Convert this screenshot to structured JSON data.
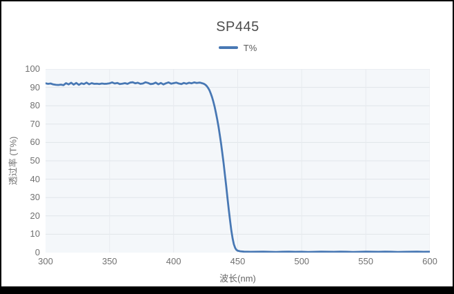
{
  "chart": {
    "title": "SP445",
    "legend": {
      "label": "T%"
    },
    "x_axis_title": "波长(nm)",
    "y_axis_title": "透过率 (T%)"
  },
  "colors": {
    "series": "#4878b4",
    "plot_bg": "#f4f7fa",
    "grid_horizontal": "#e0e5e9",
    "grid_vertical": "#e7ebef",
    "tick_text": "#707070",
    "frame_border": "#000000"
  },
  "chart_data": {
    "type": "line",
    "title": "SP445",
    "xlabel": "波长(nm)",
    "ylabel": "透过率 (T%)",
    "xlim": [
      300,
      600
    ],
    "ylim": [
      0,
      100
    ],
    "x_ticks": [
      300,
      350,
      400,
      450,
      500,
      550,
      600
    ],
    "y_ticks": [
      0,
      10,
      20,
      30,
      40,
      50,
      60,
      70,
      80,
      90,
      100
    ],
    "grid": true,
    "legend_position": "top",
    "series": [
      {
        "name": "T%",
        "color": "#4878b4",
        "points": [
          [
            300,
            92.2
          ],
          [
            302,
            91.9
          ],
          [
            304,
            92.1
          ],
          [
            306,
            91.6
          ],
          [
            308,
            91.4
          ],
          [
            310,
            91.3
          ],
          [
            312,
            91.5
          ],
          [
            314,
            91.2
          ],
          [
            316,
            92.3
          ],
          [
            318,
            91.6
          ],
          [
            320,
            92.5
          ],
          [
            322,
            91.5
          ],
          [
            324,
            92.4
          ],
          [
            326,
            91.4
          ],
          [
            328,
            92.2
          ],
          [
            330,
            91.8
          ],
          [
            332,
            92.6
          ],
          [
            334,
            91.7
          ],
          [
            336,
            92.3
          ],
          [
            338,
            91.9
          ],
          [
            340,
            92.0
          ],
          [
            342,
            91.8
          ],
          [
            344,
            92.1
          ],
          [
            346,
            91.9
          ],
          [
            348,
            92.0
          ],
          [
            350,
            92.2
          ],
          [
            352,
            92.7
          ],
          [
            354,
            92.1
          ],
          [
            356,
            92.4
          ],
          [
            358,
            91.8
          ],
          [
            360,
            92.0
          ],
          [
            362,
            92.3
          ],
          [
            364,
            91.9
          ],
          [
            366,
            92.6
          ],
          [
            368,
            92.8
          ],
          [
            370,
            92.2
          ],
          [
            372,
            92.5
          ],
          [
            374,
            91.9
          ],
          [
            376,
            92.1
          ],
          [
            378,
            92.8
          ],
          [
            380,
            92.4
          ],
          [
            382,
            91.8
          ],
          [
            384,
            92.0
          ],
          [
            386,
            92.6
          ],
          [
            388,
            91.7
          ],
          [
            390,
            92.4
          ],
          [
            392,
            91.6
          ],
          [
            394,
            92.2
          ],
          [
            396,
            92.7
          ],
          [
            398,
            92.0
          ],
          [
            400,
            92.3
          ],
          [
            402,
            92.6
          ],
          [
            404,
            92.1
          ],
          [
            406,
            91.8
          ],
          [
            408,
            92.4
          ],
          [
            410,
            92.0
          ],
          [
            412,
            92.5
          ],
          [
            414,
            92.2
          ],
          [
            416,
            92.7
          ],
          [
            418,
            92.4
          ],
          [
            420,
            92.6
          ],
          [
            421,
            92.5
          ],
          [
            422,
            92.3
          ],
          [
            423,
            92.1
          ],
          [
            424,
            91.8
          ],
          [
            425,
            91.3
          ],
          [
            426,
            90.6
          ],
          [
            427,
            89.6
          ],
          [
            428,
            88.3
          ],
          [
            429,
            86.6
          ],
          [
            430,
            84.6
          ],
          [
            431,
            82.2
          ],
          [
            432,
            79.4
          ],
          [
            433,
            76.2
          ],
          [
            434,
            72.6
          ],
          [
            435,
            68.6
          ],
          [
            436,
            64.2
          ],
          [
            437,
            59.4
          ],
          [
            438,
            54.2
          ],
          [
            439,
            48.6
          ],
          [
            440,
            42.6
          ],
          [
            441,
            36.4
          ],
          [
            442,
            30.0
          ],
          [
            443,
            23.6
          ],
          [
            444,
            17.6
          ],
          [
            445,
            12.2
          ],
          [
            446,
            7.8
          ],
          [
            447,
            4.6
          ],
          [
            448,
            2.6
          ],
          [
            449,
            1.5
          ],
          [
            450,
            1.0
          ],
          [
            452,
            0.7
          ],
          [
            455,
            0.5
          ],
          [
            458,
            0.45
          ],
          [
            460,
            0.4
          ],
          [
            465,
            0.45
          ],
          [
            470,
            0.5
          ],
          [
            475,
            0.4
          ],
          [
            480,
            0.35
          ],
          [
            485,
            0.45
          ],
          [
            490,
            0.5
          ],
          [
            495,
            0.4
          ],
          [
            500,
            0.45
          ],
          [
            505,
            0.35
          ],
          [
            510,
            0.4
          ],
          [
            515,
            0.5
          ],
          [
            520,
            0.45
          ],
          [
            525,
            0.4
          ],
          [
            530,
            0.5
          ],
          [
            535,
            0.45
          ],
          [
            540,
            0.35
          ],
          [
            545,
            0.4
          ],
          [
            550,
            0.5
          ],
          [
            555,
            0.45
          ],
          [
            560,
            0.4
          ],
          [
            565,
            0.5
          ],
          [
            570,
            0.45
          ],
          [
            575,
            0.35
          ],
          [
            580,
            0.4
          ],
          [
            585,
            0.45
          ],
          [
            590,
            0.5
          ],
          [
            595,
            0.4
          ],
          [
            600,
            0.45
          ]
        ]
      }
    ]
  }
}
